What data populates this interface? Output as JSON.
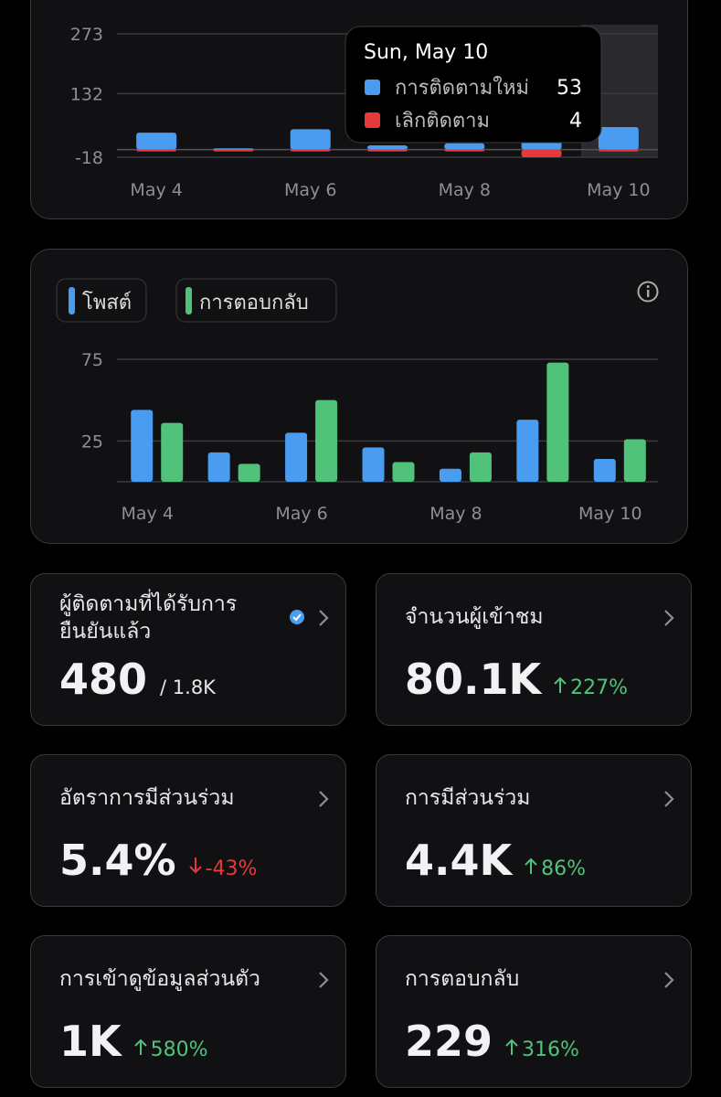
{
  "chart_data": [
    {
      "type": "bar",
      "categories": [
        "May 4",
        null,
        "May 6",
        null,
        "May 8",
        null,
        "May 10"
      ],
      "ylim": [
        -18,
        300
      ],
      "yticks": [
        273,
        132,
        -18
      ],
      "grid": true,
      "series": [
        {
          "name": "การติดตามใหม่",
          "color": "#4a9cf0",
          "values": [
            40,
            3,
            48,
            10,
            15,
            290,
            53
          ]
        },
        {
          "name": "เลิกติดตาม",
          "color": "#e5393b",
          "values": [
            0,
            -3,
            -1,
            -1,
            -1,
            -18,
            -4
          ]
        }
      ],
      "tooltip": {
        "title": "Sun, May 10",
        "values": [
          53,
          4
        ]
      }
    },
    {
      "type": "bar",
      "categories": [
        "May 4",
        null,
        "May 6",
        null,
        "May 8",
        null,
        "May 10"
      ],
      "ylim": [
        0,
        75
      ],
      "yticks": [
        75,
        25
      ],
      "grid": true,
      "series": [
        {
          "name": "โพสต์",
          "color": "#4a9cf0",
          "values": [
            44,
            18,
            30,
            21,
            8,
            38,
            14
          ]
        },
        {
          "name": "การตอบกลับ",
          "color": "#50c27a",
          "values": [
            36,
            11,
            50,
            12,
            18,
            73,
            26
          ]
        }
      ]
    }
  ],
  "cards": [
    {
      "title": "ผู้ติดตามที่ได้รับการยืนยันแล้ว",
      "value": "480",
      "total": "/ 1.8K"
    },
    {
      "title": "จำนวนผู้เข้าชม",
      "value": "80.1K",
      "change": "227%",
      "trend": "up"
    },
    {
      "title": "อัตราการมีส่วนร่วม",
      "value": "5.4%",
      "change": "-43%",
      "trend": "down"
    },
    {
      "title": "การมีส่วนร่วม",
      "value": "4.4K",
      "change": "86%",
      "trend": "up"
    },
    {
      "title": "การเข้าดูข้อมูลส่วนตัว",
      "value": "1K",
      "change": "580%",
      "trend": "up"
    },
    {
      "title": "การตอบกลับ",
      "value": "229",
      "change": "316%",
      "trend": "up"
    }
  ]
}
